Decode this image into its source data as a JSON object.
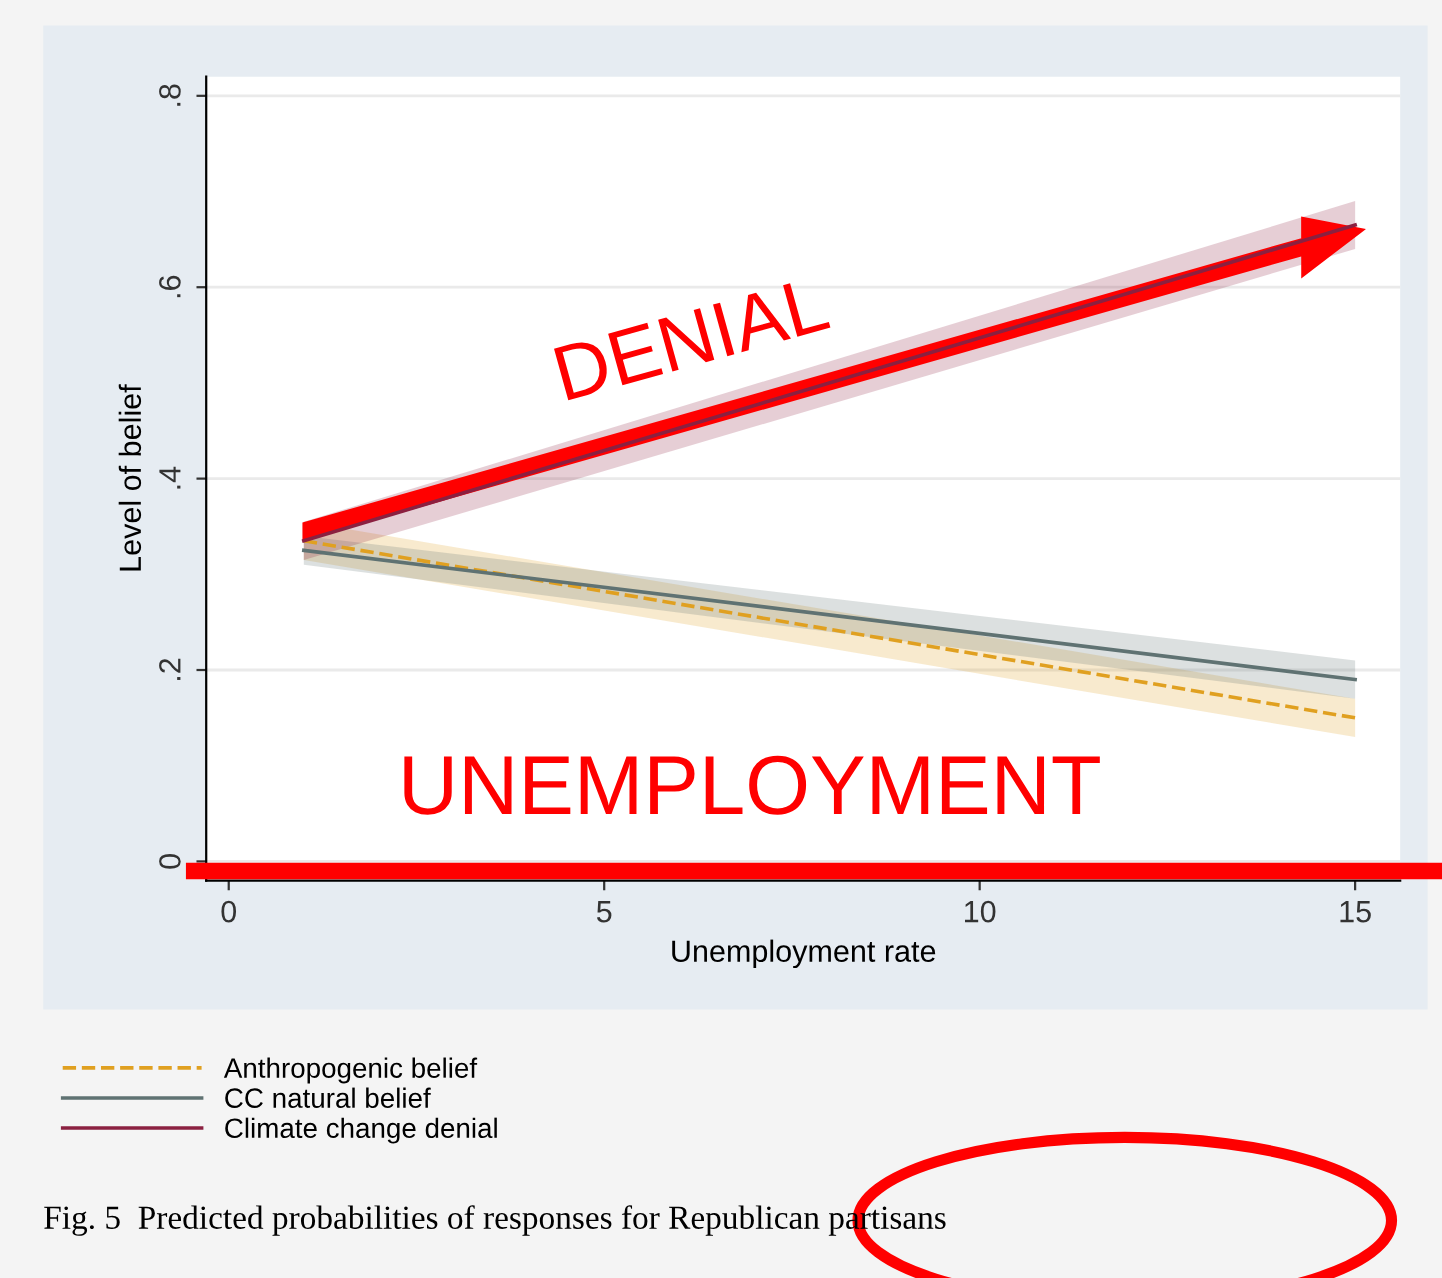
{
  "chart_data": {
    "type": "line",
    "xlabel": "Unemployment rate",
    "ylabel": "Level of belief",
    "x": [
      1,
      15
    ],
    "series": [
      {
        "name": "Anthropogenic belief",
        "color": "#e0a020",
        "line_style": "dashed",
        "values": [
          0.335,
          0.15
        ],
        "lower": [
          0.315,
          0.13
        ],
        "upper": [
          0.355,
          0.17
        ]
      },
      {
        "name": "CC natural belief",
        "color": "#5f7272",
        "line_style": "solid",
        "values": [
          0.325,
          0.19
        ],
        "lower": [
          0.31,
          0.17
        ],
        "upper": [
          0.34,
          0.21
        ]
      },
      {
        "name": "Climate change denial",
        "color": "#8b2040",
        "line_style": "solid",
        "values": [
          0.335,
          0.665
        ],
        "lower": [
          0.315,
          0.64
        ],
        "upper": [
          0.355,
          0.69
        ]
      }
    ],
    "xlim": [
      -0.3,
      15.6
    ],
    "ylim": [
      -0.02,
      0.82
    ],
    "xticks": [
      0,
      5,
      10,
      15
    ],
    "yticks": [
      {
        "value": 0,
        "label": "0"
      },
      {
        "value": 0.2,
        "label": ".2"
      },
      {
        "value": 0.4,
        "label": ".4"
      },
      {
        "value": 0.6,
        "label": ".6"
      },
      {
        "value": 0.8,
        "label": ".8"
      }
    ],
    "ref_lines": [
      {
        "axis": "y",
        "value": -0.01,
        "color": "#ff0000"
      }
    ],
    "grid": "y",
    "legend": "bottom left",
    "marker": "none",
    "annotations": [
      "DENIAL",
      "UNEMPLOYMENT",
      "Fig. 5  Predicted probabilities of responses for Republican partisans"
    ]
  }
}
